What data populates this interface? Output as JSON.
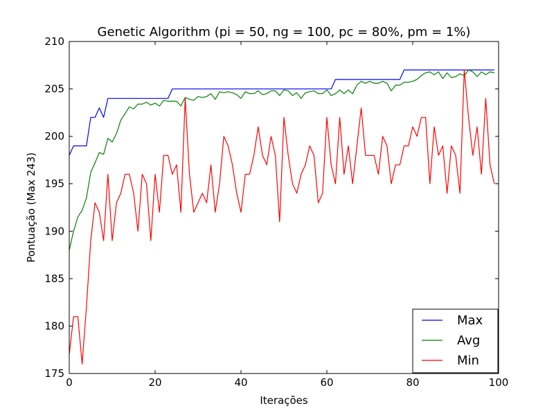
{
  "chart_data": {
    "type": "line",
    "title": "Genetic Algorithm (pi = 50, ng = 100, pc = 80%, pm = 1%)",
    "xlabel": "Iterações",
    "ylabel": "Pontuação (Max 243)",
    "xlim": [
      0,
      100
    ],
    "ylim": [
      175,
      210
    ],
    "xticks": [
      0,
      20,
      40,
      60,
      80,
      100
    ],
    "yticks": [
      175,
      180,
      185,
      190,
      195,
      200,
      205,
      210
    ],
    "xtick_labels": [
      "0",
      "20",
      "40",
      "60",
      "80",
      "100"
    ],
    "ytick_labels": [
      "175",
      "180",
      "185",
      "190",
      "195",
      "200",
      "205",
      "210"
    ],
    "grid": false,
    "legend_position": "bottom-right",
    "x": [
      0,
      1,
      2,
      3,
      4,
      5,
      6,
      7,
      8,
      9,
      10,
      11,
      12,
      13,
      14,
      15,
      16,
      17,
      18,
      19,
      20,
      21,
      22,
      23,
      24,
      25,
      26,
      27,
      28,
      29,
      30,
      31,
      32,
      33,
      34,
      35,
      36,
      37,
      38,
      39,
      40,
      41,
      42,
      43,
      44,
      45,
      46,
      47,
      48,
      49,
      50,
      51,
      52,
      53,
      54,
      55,
      56,
      57,
      58,
      59,
      60,
      61,
      62,
      63,
      64,
      65,
      66,
      67,
      68,
      69,
      70,
      71,
      72,
      73,
      74,
      75,
      76,
      77,
      78,
      79,
      80,
      81,
      82,
      83,
      84,
      85,
      86,
      87,
      88,
      89,
      90,
      91,
      92,
      93,
      94,
      95,
      96,
      97,
      98,
      99
    ],
    "series": [
      {
        "name": "Max",
        "color": "#0000ff",
        "values": [
          198,
          199,
          199,
          199,
          199,
          202,
          202,
          203,
          202,
          204,
          204,
          204,
          204,
          204,
          204,
          204,
          204,
          204,
          204,
          204,
          204,
          204,
          204,
          204,
          205,
          205,
          205,
          205,
          205,
          205,
          205,
          205,
          205,
          205,
          205,
          205,
          205,
          205,
          205,
          205,
          205,
          205,
          205,
          205,
          205,
          205,
          205,
          205,
          205,
          205,
          205,
          205,
          205,
          205,
          205,
          205,
          205,
          205,
          205,
          205,
          205,
          205,
          206,
          206,
          206,
          206,
          206,
          206,
          206,
          206,
          206,
          206,
          206,
          206,
          206,
          206,
          206,
          206,
          207,
          207,
          207,
          207,
          207,
          207,
          207,
          207,
          207,
          207,
          207,
          207,
          207,
          207,
          207,
          207,
          207,
          207,
          207,
          207,
          207,
          207
        ]
      },
      {
        "name": "Avg",
        "color": "#008000",
        "values": [
          188,
          190,
          191.5,
          192.2,
          193.5,
          196.2,
          197.2,
          198.3,
          198.1,
          199.8,
          199.4,
          200.3,
          201.7,
          202.4,
          203.1,
          202.9,
          203.4,
          203.4,
          203.6,
          203.3,
          203.5,
          203.2,
          203.8,
          203.7,
          203.7,
          203.7,
          203.2,
          204.1,
          203.9,
          203.8,
          204.2,
          204.1,
          204.2,
          204.5,
          203.9,
          204.7,
          204.6,
          204.7,
          204.6,
          204.4,
          204.0,
          204.7,
          204.5,
          204.5,
          204.8,
          204.4,
          204.5,
          204.8,
          204.8,
          204.3,
          204.9,
          204.8,
          204.3,
          204.6,
          204.0,
          204.6,
          204.7,
          204.8,
          204.5,
          204.5,
          204.9,
          204.3,
          204.5,
          204.9,
          204.5,
          204.9,
          204.5,
          205.4,
          205.8,
          205.6,
          205.8,
          205.6,
          205.6,
          205.8,
          205.6,
          204.8,
          205.4,
          205.4,
          205.7,
          205.7,
          205.8,
          206.0,
          206.4,
          206.7,
          206.8,
          206.5,
          206.8,
          206.1,
          206.7,
          206.2,
          206.3,
          206.6,
          206.4,
          207.0,
          206.8,
          206.3,
          206.8,
          206.5,
          206.8,
          206.7
        ]
      },
      {
        "name": "Min",
        "color": "#ff0000",
        "values": [
          177,
          181,
          181,
          176,
          182,
          189,
          193,
          192,
          189,
          196,
          189,
          193,
          194,
          196,
          196,
          194,
          190,
          196,
          195,
          189,
          196,
          192,
          198,
          198,
          196,
          197,
          192,
          204,
          196,
          192,
          193,
          194,
          193,
          197,
          192,
          195,
          200,
          199,
          197,
          194,
          192,
          196,
          196,
          198,
          201,
          198,
          197,
          200,
          198,
          191,
          202,
          198,
          195,
          194,
          196,
          197,
          199,
          198,
          193,
          194,
          202,
          197,
          195,
          202,
          196,
          199,
          195,
          199,
          203,
          198,
          198,
          198,
          196,
          200,
          199,
          195,
          197,
          197,
          199,
          199,
          201,
          200,
          202,
          202,
          195,
          201,
          198,
          199,
          194,
          199,
          198,
          194,
          207,
          202,
          198,
          201,
          196,
          204,
          197,
          195
        ]
      }
    ]
  }
}
